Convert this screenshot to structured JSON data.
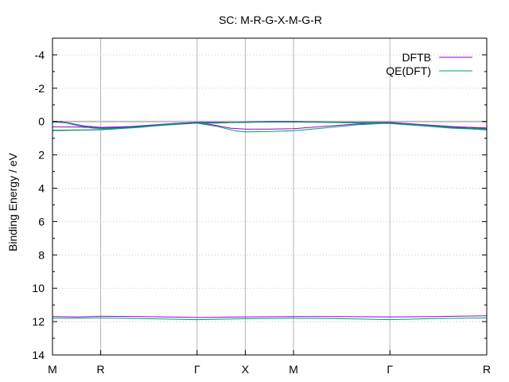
{
  "chart_data": {
    "type": "line",
    "title": "SC: M-R-G-X-M-G-R",
    "ylabel": "Binding Energy / eV",
    "xlabel": "",
    "ylim": [
      -5,
      14
    ],
    "y_inverted": true,
    "y_ticks": [
      -4,
      -2,
      0,
      2,
      4,
      6,
      8,
      10,
      12,
      14
    ],
    "xlim": [
      0,
      1
    ],
    "k_points": [
      {
        "label": "M",
        "x": 0.0
      },
      {
        "label": "R",
        "x": 0.111
      },
      {
        "label": "Γ",
        "x": 0.333
      },
      {
        "label": "X",
        "x": 0.444
      },
      {
        "label": "M",
        "x": 0.555
      },
      {
        "label": "Γ",
        "x": 0.777
      },
      {
        "label": "R",
        "x": 1.0
      }
    ],
    "fermi_level": 0,
    "grid": "vertical lines at k-points, dotted horizontal at y ticks",
    "legend_position": "top-right",
    "series": [
      {
        "name": "DFTB",
        "color": "#9400d3",
        "bands": [
          [
            [
              0,
              0.0
            ],
            [
              0.02,
              0.0
            ],
            [
              0.05,
              0.2
            ],
            [
              0.09,
              0.38
            ],
            [
              0.111,
              0.42
            ],
            [
              0.16,
              0.35
            ],
            [
              0.22,
              0.25
            ],
            [
              0.28,
              0.12
            ],
            [
              0.333,
              0.05
            ],
            [
              0.37,
              0.2
            ],
            [
              0.41,
              0.4
            ],
            [
              0.444,
              0.45
            ],
            [
              0.5,
              0.45
            ],
            [
              0.555,
              0.43
            ],
            [
              0.62,
              0.3
            ],
            [
              0.7,
              0.15
            ],
            [
              0.777,
              0.05
            ],
            [
              0.85,
              0.2
            ],
            [
              0.92,
              0.32
            ],
            [
              1.0,
              0.38
            ]
          ],
          [
            [
              0,
              0.0
            ],
            [
              0.03,
              0.05
            ],
            [
              0.07,
              0.25
            ],
            [
              0.111,
              0.35
            ],
            [
              0.18,
              0.3
            ],
            [
              0.26,
              0.15
            ],
            [
              0.333,
              0.05
            ],
            [
              0.38,
              0.08
            ],
            [
              0.42,
              0.05
            ],
            [
              0.444,
              0.02
            ],
            [
              0.5,
              0.0
            ],
            [
              0.555,
              0.0
            ],
            [
              0.62,
              0.02
            ],
            [
              0.7,
              0.05
            ],
            [
              0.777,
              0.05
            ],
            [
              0.85,
              0.18
            ],
            [
              0.92,
              0.3
            ],
            [
              1.0,
              0.4
            ]
          ],
          [
            [
              0,
              0.32
            ],
            [
              0.06,
              0.33
            ],
            [
              0.111,
              0.38
            ],
            [
              0.2,
              0.28
            ],
            [
              0.333,
              0.05
            ],
            [
              0.39,
              0.05
            ],
            [
              0.444,
              0.05
            ],
            [
              0.5,
              0.0
            ],
            [
              0.555,
              0.0
            ],
            [
              0.65,
              0.05
            ],
            [
              0.777,
              0.08
            ],
            [
              0.88,
              0.28
            ],
            [
              1.0,
              0.4
            ]
          ],
          [
            [
              0,
              11.7
            ],
            [
              0.06,
              11.72
            ],
            [
              0.111,
              11.68
            ],
            [
              0.2,
              11.7
            ],
            [
              0.333,
              11.75
            ],
            [
              0.444,
              11.72
            ],
            [
              0.555,
              11.7
            ],
            [
              0.65,
              11.7
            ],
            [
              0.777,
              11.72
            ],
            [
              0.88,
              11.7
            ],
            [
              1.0,
              11.65
            ]
          ]
        ]
      },
      {
        "name": "QE(DFT)",
        "color": "#009e73",
        "bands": [
          [
            [
              0,
              0.52
            ],
            [
              0.06,
              0.5
            ],
            [
              0.111,
              0.5
            ],
            [
              0.2,
              0.35
            ],
            [
              0.28,
              0.15
            ],
            [
              0.333,
              0.1
            ],
            [
              0.38,
              0.3
            ],
            [
              0.42,
              0.55
            ],
            [
              0.444,
              0.62
            ],
            [
              0.5,
              0.6
            ],
            [
              0.555,
              0.55
            ],
            [
              0.62,
              0.4
            ],
            [
              0.7,
              0.2
            ],
            [
              0.777,
              0.1
            ],
            [
              0.85,
              0.25
            ],
            [
              0.92,
              0.4
            ],
            [
              1.0,
              0.48
            ]
          ],
          [
            [
              0,
              0.02
            ],
            [
              0.03,
              0.08
            ],
            [
              0.07,
              0.28
            ],
            [
              0.111,
              0.42
            ],
            [
              0.18,
              0.35
            ],
            [
              0.26,
              0.18
            ],
            [
              0.333,
              0.1
            ],
            [
              0.38,
              0.1
            ],
            [
              0.42,
              0.05
            ],
            [
              0.444,
              0.05
            ],
            [
              0.5,
              0.02
            ],
            [
              0.555,
              0.02
            ],
            [
              0.62,
              0.03
            ],
            [
              0.7,
              0.06
            ],
            [
              0.777,
              0.1
            ],
            [
              0.85,
              0.22
            ],
            [
              0.92,
              0.35
            ],
            [
              1.0,
              0.45
            ]
          ],
          [
            [
              0,
              0.55
            ],
            [
              0.06,
              0.52
            ],
            [
              0.111,
              0.48
            ],
            [
              0.2,
              0.32
            ],
            [
              0.333,
              0.1
            ],
            [
              0.39,
              0.08
            ],
            [
              0.444,
              0.05
            ],
            [
              0.5,
              0.03
            ],
            [
              0.555,
              0.03
            ],
            [
              0.65,
              0.06
            ],
            [
              0.777,
              0.12
            ],
            [
              0.88,
              0.3
            ],
            [
              1.0,
              0.5
            ]
          ],
          [
            [
              0,
              11.8
            ],
            [
              0.06,
              11.8
            ],
            [
              0.111,
              11.78
            ],
            [
              0.2,
              11.82
            ],
            [
              0.333,
              11.88
            ],
            [
              0.444,
              11.83
            ],
            [
              0.555,
              11.8
            ],
            [
              0.65,
              11.82
            ],
            [
              0.777,
              11.88
            ],
            [
              0.88,
              11.82
            ],
            [
              1.0,
              11.78
            ]
          ]
        ]
      }
    ]
  }
}
